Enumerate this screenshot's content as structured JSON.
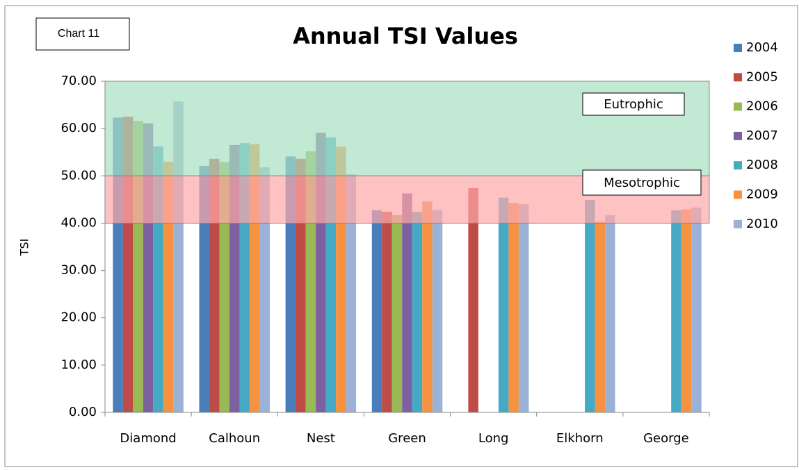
{
  "chart_data": {
    "type": "bar",
    "title": "Annual TSI Values",
    "annotation": "Chart 11",
    "y_label": "TSI",
    "categories": [
      "Diamond",
      "Calhoun",
      "Nest",
      "Green",
      "Long",
      "Elkhorn",
      "George"
    ],
    "series": [
      {
        "name": "2004",
        "color": "#4a7ebb",
        "values": [
          62.3,
          52.1,
          54.1,
          42.7,
          null,
          null,
          null
        ]
      },
      {
        "name": "2005",
        "color": "#be4b48",
        "values": [
          62.5,
          53.6,
          53.6,
          42.4,
          47.4,
          null,
          null
        ]
      },
      {
        "name": "2006",
        "color": "#98b954",
        "values": [
          61.6,
          52.9,
          55.2,
          41.7,
          null,
          null,
          null
        ]
      },
      {
        "name": "2007",
        "color": "#7d60a0",
        "values": [
          61.1,
          56.5,
          59.1,
          46.3,
          null,
          null,
          null
        ]
      },
      {
        "name": "2008",
        "color": "#46aac5",
        "values": [
          56.2,
          56.9,
          58.1,
          42.4,
          45.4,
          44.9,
          42.7
        ]
      },
      {
        "name": "2009",
        "color": "#f69240",
        "values": [
          53.0,
          56.7,
          56.2,
          44.6,
          44.3,
          40.3,
          42.9
        ]
      },
      {
        "name": "2010",
        "color": "#9cb1d6",
        "values": [
          65.7,
          51.8,
          50.3,
          42.8,
          44.0,
          41.7,
          43.3
        ]
      }
    ],
    "bands": [
      {
        "label": "Eutrophic",
        "range": [
          50,
          70
        ],
        "color": "#a8e0c0"
      },
      {
        "label": "Mesotrophic",
        "range": [
          40,
          50
        ],
        "color": "#ffa8a8"
      }
    ],
    "ylim": [
      0,
      70
    ],
    "yticks": [
      {
        "value": 0,
        "label": "0.00"
      },
      {
        "value": 10,
        "label": "10.00"
      },
      {
        "value": 20,
        "label": "20.00"
      },
      {
        "value": 30,
        "label": "30.00"
      },
      {
        "value": 40,
        "label": "40.00"
      },
      {
        "value": 50,
        "label": "50.00"
      },
      {
        "value": 60,
        "label": "60.00"
      },
      {
        "value": 70,
        "label": "70.00"
      }
    ],
    "legend": "right"
  }
}
